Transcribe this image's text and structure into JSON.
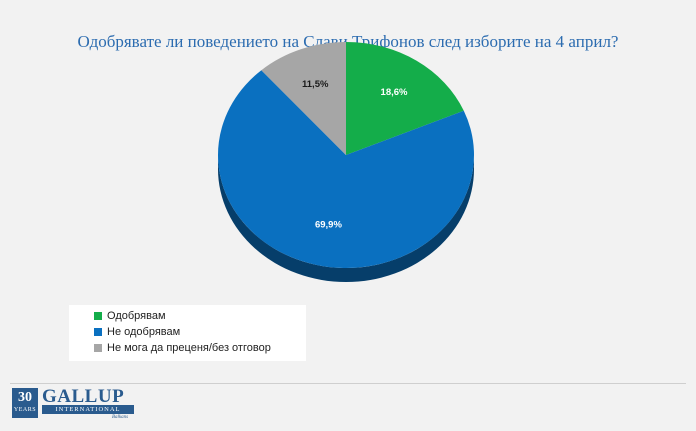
{
  "chart_data": {
    "type": "pie",
    "title": "Одобрявате ли поведението на Слави Трифонов след изборите на 4 април?",
    "slices": [
      {
        "label": "Одобрявам",
        "value": 18.6,
        "display": "18,6%",
        "color": "#14ad4a"
      },
      {
        "label": "Не одобрявам",
        "value": 69.9,
        "display": "69,9%",
        "color": "#0a70c0"
      },
      {
        "label": "Не мога да преценя/без отговор",
        "value": 11.5,
        "display": "11,5%",
        "color": "#a6a6a6"
      }
    ],
    "legend_position": "bottom-left"
  },
  "logo": {
    "years_number": "30",
    "years_word": "YEARS",
    "brand": "GALLUP",
    "sub": "INTERNATIONAL",
    "region": "Balkans"
  }
}
